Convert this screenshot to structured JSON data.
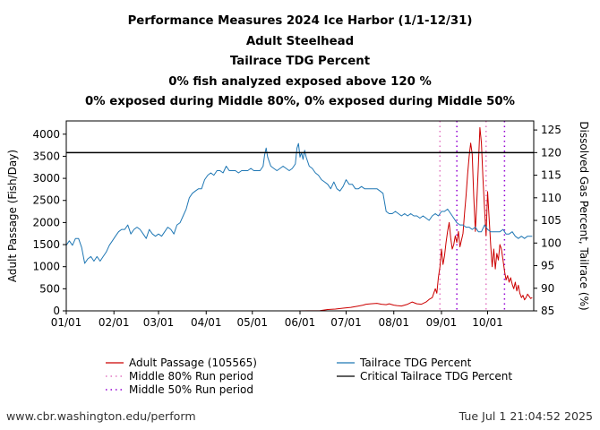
{
  "chart_data": {
    "type": "line",
    "title": "Performance Measures 2024 Ice Harbor (1/1-12/31)",
    "subtitles": [
      "Adult Steelhead",
      "Tailrace TDG Percent",
      "0% fish analyzed exposed above 120 %",
      "0% exposed during Middle 80%, 0% exposed during Middle 50%"
    ],
    "xlabel": "",
    "ylabel_left": "Adult Passage (Fish/Day)",
    "ylabel_right": "Dissolved Gas Percent, Tailrace (%)",
    "x_ticks": [
      "01/01",
      "02/01",
      "03/01",
      "04/01",
      "05/01",
      "06/01",
      "07/01",
      "08/01",
      "09/01",
      "10/01"
    ],
    "x_tick_days": [
      0,
      31,
      60,
      91,
      121,
      152,
      182,
      213,
      244,
      274
    ],
    "xlim_days": [
      0,
      304
    ],
    "ylim_left": [
      0,
      4300
    ],
    "yticks_left": [
      0,
      500,
      1000,
      1500,
      2000,
      2500,
      3000,
      3500,
      4000
    ],
    "ylim_right": [
      85,
      127
    ],
    "yticks_right": [
      85,
      90,
      95,
      100,
      105,
      110,
      115,
      120,
      125
    ],
    "critical_tdg_percent": 120,
    "middle_80_period_days": [
      243,
      273
    ],
    "middle_50_period_days": [
      254,
      285
    ],
    "series": [
      {
        "name": "Adult Passage (105565)",
        "axis": "left",
        "color": "#cc0000",
        "points": [
          [
            0,
            0
          ],
          [
            150,
            0
          ],
          [
            165,
            5
          ],
          [
            170,
            30
          ],
          [
            175,
            40
          ],
          [
            180,
            60
          ],
          [
            185,
            80
          ],
          [
            190,
            110
          ],
          [
            193,
            130
          ],
          [
            195,
            150
          ],
          [
            198,
            160
          ],
          [
            202,
            170
          ],
          [
            205,
            150
          ],
          [
            208,
            140
          ],
          [
            210,
            160
          ],
          [
            213,
            130
          ],
          [
            215,
            120
          ],
          [
            218,
            110
          ],
          [
            222,
            150
          ],
          [
            225,
            200
          ],
          [
            228,
            160
          ],
          [
            231,
            150
          ],
          [
            234,
            200
          ],
          [
            236,
            260
          ],
          [
            238,
            300
          ],
          [
            240,
            500
          ],
          [
            241,
            400
          ],
          [
            242,
            750
          ],
          [
            243,
            1000
          ],
          [
            244,
            1400
          ],
          [
            245,
            1050
          ],
          [
            246,
            1250
          ],
          [
            247,
            1550
          ],
          [
            248,
            1800
          ],
          [
            249,
            2000
          ],
          [
            250,
            1650
          ],
          [
            251,
            1400
          ],
          [
            252,
            1500
          ],
          [
            253,
            1700
          ],
          [
            254,
            1550
          ],
          [
            255,
            1800
          ],
          [
            256,
            1450
          ],
          [
            257,
            1600
          ],
          [
            258,
            1750
          ],
          [
            259,
            2200
          ],
          [
            260,
            2600
          ],
          [
            261,
            3100
          ],
          [
            262,
            3500
          ],
          [
            263,
            3800
          ],
          [
            264,
            3550
          ],
          [
            265,
            2600
          ],
          [
            266,
            1800
          ],
          [
            267,
            2500
          ],
          [
            268,
            3300
          ],
          [
            269,
            4150
          ],
          [
            270,
            3800
          ],
          [
            271,
            3000
          ],
          [
            272,
            2300
          ],
          [
            273,
            1700
          ],
          [
            274,
            2700
          ],
          [
            275,
            2100
          ],
          [
            276,
            1500
          ],
          [
            277,
            1000
          ],
          [
            278,
            1400
          ],
          [
            279,
            950
          ],
          [
            280,
            1300
          ],
          [
            281,
            1150
          ],
          [
            282,
            1500
          ],
          [
            283,
            1400
          ],
          [
            284,
            1150
          ],
          [
            285,
            900
          ],
          [
            286,
            700
          ],
          [
            287,
            800
          ],
          [
            288,
            650
          ],
          [
            289,
            750
          ],
          [
            290,
            600
          ],
          [
            291,
            500
          ],
          [
            292,
            650
          ],
          [
            293,
            450
          ],
          [
            294,
            580
          ],
          [
            295,
            400
          ],
          [
            296,
            300
          ],
          [
            297,
            350
          ],
          [
            298,
            250
          ],
          [
            299,
            300
          ],
          [
            300,
            380
          ],
          [
            301,
            330
          ],
          [
            302,
            280
          ],
          [
            303,
            300
          ]
        ]
      },
      {
        "name": "Tailrace TDG Percent",
        "axis": "right",
        "color": "#1f77b4",
        "points": [
          [
            0,
            99.5
          ],
          [
            2,
            100.5
          ],
          [
            4,
            99.5
          ],
          [
            6,
            101
          ],
          [
            8,
            101
          ],
          [
            10,
            99
          ],
          [
            12,
            95.5
          ],
          [
            14,
            96.5
          ],
          [
            16,
            97
          ],
          [
            18,
            96
          ],
          [
            20,
            97
          ],
          [
            22,
            96
          ],
          [
            24,
            97
          ],
          [
            26,
            98
          ],
          [
            28,
            99.5
          ],
          [
            30,
            100.5
          ],
          [
            32,
            101.5
          ],
          [
            34,
            102.5
          ],
          [
            36,
            103
          ],
          [
            38,
            103
          ],
          [
            40,
            104
          ],
          [
            42,
            102
          ],
          [
            44,
            103
          ],
          [
            46,
            103.5
          ],
          [
            48,
            103
          ],
          [
            50,
            102
          ],
          [
            52,
            101
          ],
          [
            54,
            103
          ],
          [
            56,
            102
          ],
          [
            58,
            101.5
          ],
          [
            60,
            102
          ],
          [
            62,
            101.5
          ],
          [
            64,
            102.5
          ],
          [
            66,
            103.5
          ],
          [
            68,
            103
          ],
          [
            70,
            102
          ],
          [
            72,
            104
          ],
          [
            74,
            104.5
          ],
          [
            76,
            106
          ],
          [
            78,
            107.5
          ],
          [
            80,
            110
          ],
          [
            82,
            111
          ],
          [
            84,
            111.5
          ],
          [
            86,
            112
          ],
          [
            88,
            112
          ],
          [
            90,
            114
          ],
          [
            92,
            115
          ],
          [
            94,
            115.5
          ],
          [
            96,
            115
          ],
          [
            98,
            116
          ],
          [
            100,
            116
          ],
          [
            102,
            115.5
          ],
          [
            104,
            117
          ],
          [
            106,
            116
          ],
          [
            108,
            116
          ],
          [
            110,
            116
          ],
          [
            112,
            115.5
          ],
          [
            114,
            116
          ],
          [
            116,
            116
          ],
          [
            118,
            116
          ],
          [
            120,
            116.5
          ],
          [
            122,
            116
          ],
          [
            124,
            116
          ],
          [
            126,
            116
          ],
          [
            128,
            117
          ],
          [
            129,
            119.5
          ],
          [
            130,
            121
          ],
          [
            131,
            119
          ],
          [
            133,
            117
          ],
          [
            135,
            116.5
          ],
          [
            137,
            116
          ],
          [
            139,
            116.5
          ],
          [
            141,
            117
          ],
          [
            143,
            116.5
          ],
          [
            145,
            116
          ],
          [
            147,
            116.5
          ],
          [
            149,
            117.5
          ],
          [
            150,
            121
          ],
          [
            151,
            122
          ],
          [
            152,
            119
          ],
          [
            153,
            120
          ],
          [
            154,
            118.5
          ],
          [
            155,
            120.5
          ],
          [
            156,
            119
          ],
          [
            158,
            117
          ],
          [
            160,
            116.5
          ],
          [
            162,
            115.5
          ],
          [
            164,
            115
          ],
          [
            166,
            114
          ],
          [
            168,
            113.5
          ],
          [
            170,
            113
          ],
          [
            172,
            112
          ],
          [
            174,
            113.5
          ],
          [
            176,
            112
          ],
          [
            178,
            111.5
          ],
          [
            180,
            112.5
          ],
          [
            182,
            114
          ],
          [
            184,
            113
          ],
          [
            186,
            113
          ],
          [
            188,
            112
          ],
          [
            190,
            112
          ],
          [
            192,
            112.5
          ],
          [
            194,
            112
          ],
          [
            196,
            112
          ],
          [
            198,
            112
          ],
          [
            200,
            112
          ],
          [
            202,
            112
          ],
          [
            204,
            111.5
          ],
          [
            206,
            111
          ],
          [
            208,
            107
          ],
          [
            210,
            106.5
          ],
          [
            212,
            106.5
          ],
          [
            214,
            107
          ],
          [
            216,
            106.5
          ],
          [
            218,
            106
          ],
          [
            220,
            106.5
          ],
          [
            222,
            106
          ],
          [
            224,
            106.5
          ],
          [
            226,
            106
          ],
          [
            228,
            106
          ],
          [
            230,
            105.5
          ],
          [
            232,
            106
          ],
          [
            234,
            105.5
          ],
          [
            236,
            105
          ],
          [
            238,
            106
          ],
          [
            240,
            106.5
          ],
          [
            242,
            106
          ],
          [
            244,
            107
          ],
          [
            246,
            107
          ],
          [
            248,
            107.5
          ],
          [
            250,
            106.5
          ],
          [
            252,
            105.5
          ],
          [
            254,
            104.5
          ],
          [
            256,
            104
          ],
          [
            258,
            104
          ],
          [
            260,
            103.5
          ],
          [
            262,
            103.5
          ],
          [
            264,
            103
          ],
          [
            266,
            103.5
          ],
          [
            268,
            102.5
          ],
          [
            270,
            102.5
          ],
          [
            272,
            104
          ],
          [
            274,
            103
          ],
          [
            276,
            102.5
          ],
          [
            278,
            102.5
          ],
          [
            280,
            102.5
          ],
          [
            282,
            102.5
          ],
          [
            284,
            103
          ],
          [
            286,
            102
          ],
          [
            288,
            102
          ],
          [
            290,
            102.5
          ],
          [
            292,
            101.5
          ],
          [
            294,
            101
          ],
          [
            296,
            101.5
          ],
          [
            298,
            101
          ],
          [
            300,
            101.5
          ],
          [
            303,
            101.5
          ]
        ]
      }
    ],
    "legend": {
      "placement": "bottom",
      "entries": [
        {
          "label": "Adult Passage (105565)",
          "style": "line",
          "color": "#cc0000"
        },
        {
          "label": "Tailrace TDG Percent",
          "style": "line",
          "color": "#1f77b4"
        },
        {
          "label": "Middle 80% Run period",
          "style": "dotted",
          "color": "#e377c2"
        },
        {
          "label": "Critical Tailrace TDG Percent",
          "style": "line",
          "color": "#000000"
        },
        {
          "label": "Middle 50% Run period",
          "style": "dotted",
          "color": "#9400d3"
        }
      ]
    }
  },
  "footer": {
    "url": "www.cbr.washington.edu/perform",
    "timestamp": "Tue Jul  1 21:04:52 2025"
  }
}
